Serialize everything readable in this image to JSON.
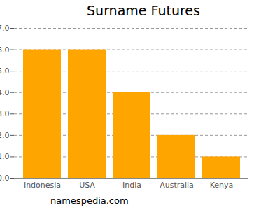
{
  "chart_data": {
    "type": "bar",
    "title": "Surname Futures",
    "caption": "namespedia.com",
    "categories": [
      "Indonesia",
      "USA",
      "India",
      "Australia",
      "Kenya"
    ],
    "values": [
      6,
      6,
      4,
      2,
      1
    ],
    "color": "#ffa500",
    "ylim": [
      0,
      7
    ],
    "yticks": [
      0,
      1,
      2,
      3,
      4,
      5,
      6,
      7
    ],
    "grid": true
  }
}
